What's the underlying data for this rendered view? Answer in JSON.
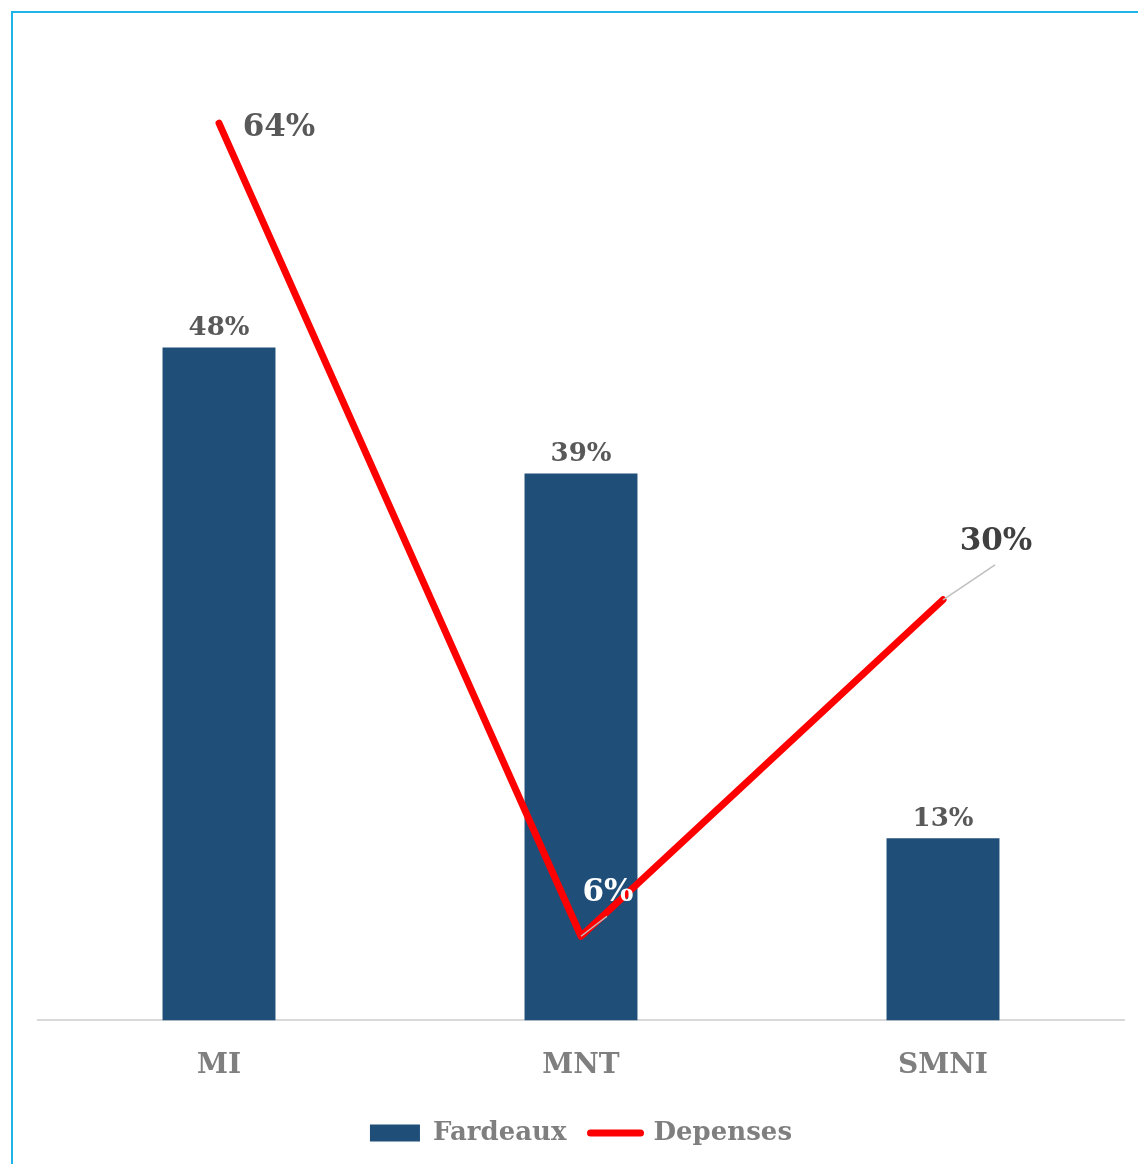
{
  "chart_data": {
    "type": "bar",
    "categories": [
      "MI",
      "MNT",
      "SMNI"
    ],
    "series": [
      {
        "name": "Fardeaux",
        "color": "#1f4e79",
        "values": [
          48,
          39,
          13
        ],
        "value_labels": [
          "48%",
          "39%",
          "13%"
        ]
      },
      {
        "name": "Depenses",
        "type": "line",
        "color": "#ff0000",
        "values": [
          64,
          6,
          30
        ],
        "value_labels": [
          "64%",
          "6%",
          "30%"
        ]
      }
    ],
    "legend": "bottom",
    "tick_labels": "x"
  }
}
